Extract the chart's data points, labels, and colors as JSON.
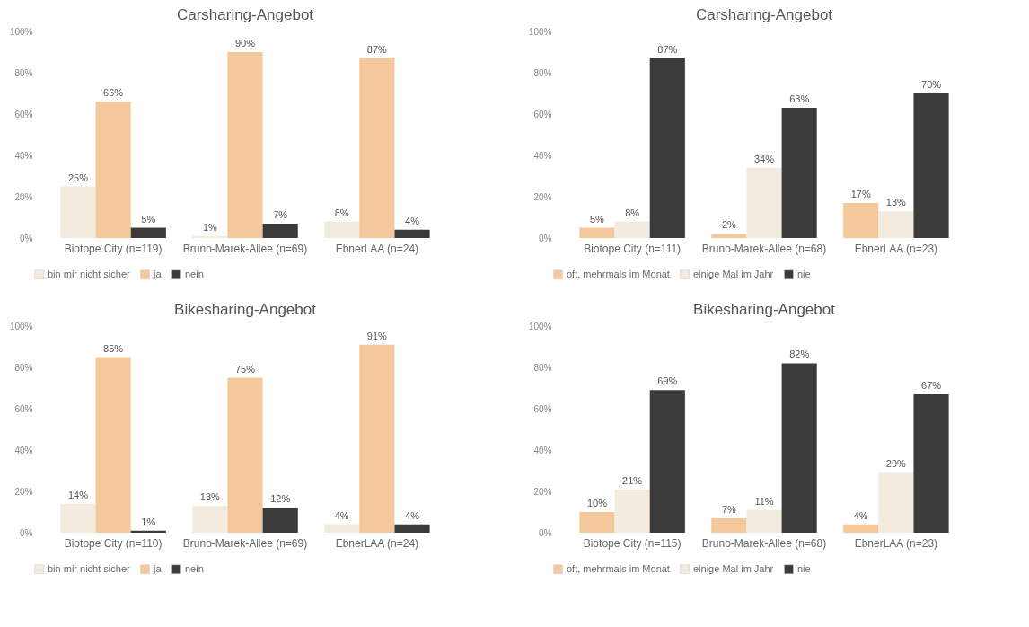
{
  "chart_data": [
    {
      "type": "bar",
      "title": "Carsharing-Angebot",
      "categories": [
        "Biotope City (n=119)",
        "Bruno-Marek-Allee (n=69)",
        "EbnerLAA (n=24)"
      ],
      "ylim": [
        0,
        100
      ],
      "yticks": [
        {
          "value": 0,
          "label": "0%"
        },
        {
          "value": 20,
          "label": "20%"
        },
        {
          "value": 40,
          "label": "40%"
        },
        {
          "value": 60,
          "label": "60%"
        },
        {
          "value": 80,
          "label": "80%"
        },
        {
          "value": 100,
          "label": "100%"
        }
      ],
      "legend": "bottom",
      "series": [
        {
          "name": "bin mir nicht sicher",
          "color": "#f3ebdf",
          "values": [
            25,
            1,
            8
          ],
          "value_labels": [
            "25%",
            "1%",
            "8%"
          ]
        },
        {
          "name": "ja",
          "color": "#f5c89c",
          "values": [
            66,
            90,
            87
          ],
          "value_labels": [
            "66%",
            "90%",
            "87%"
          ]
        },
        {
          "name": "nein",
          "color": "#3b3b3b",
          "values": [
            5,
            7,
            4
          ],
          "value_labels": [
            "5%",
            "7%",
            "4%"
          ]
        }
      ]
    },
    {
      "type": "bar",
      "title": "Carsharing-Angebot",
      "categories": [
        "Biotope City (n=111)",
        "Bruno-Marek-Allee (n=68)",
        "EbnerLAA (n=23)"
      ],
      "ylim": [
        0,
        100
      ],
      "yticks": [
        {
          "value": 0,
          "label": "0%"
        },
        {
          "value": 20,
          "label": "20%"
        },
        {
          "value": 40,
          "label": "40%"
        },
        {
          "value": 60,
          "label": "60%"
        },
        {
          "value": 80,
          "label": "80%"
        },
        {
          "value": 100,
          "label": "100%"
        }
      ],
      "legend": "bottom",
      "series": [
        {
          "name": "oft, mehrmals im Monat",
          "color": "#f5c89c",
          "values": [
            5,
            2,
            17
          ],
          "value_labels": [
            "5%",
            "2%",
            "17%"
          ]
        },
        {
          "name": "einige Mal im Jahr",
          "color": "#f3ebdf",
          "values": [
            8,
            34,
            13
          ],
          "value_labels": [
            "8%",
            "34%",
            "13%"
          ]
        },
        {
          "name": "nie",
          "color": "#3b3b3b",
          "values": [
            87,
            63,
            70
          ],
          "value_labels": [
            "87%",
            "63%",
            "70%"
          ]
        }
      ]
    },
    {
      "type": "bar",
      "title": "Bikesharing-Angebot",
      "categories": [
        "Biotope City (n=110)",
        "Bruno-Marek-Allee (n=69)",
        "EbnerLAA (n=24)"
      ],
      "ylim": [
        0,
        100
      ],
      "yticks": [
        {
          "value": 0,
          "label": "0%"
        },
        {
          "value": 20,
          "label": "20%"
        },
        {
          "value": 40,
          "label": "40%"
        },
        {
          "value": 60,
          "label": "60%"
        },
        {
          "value": 80,
          "label": "80%"
        },
        {
          "value": 100,
          "label": "100%"
        }
      ],
      "legend": "bottom",
      "series": [
        {
          "name": "bin mir nicht sicher",
          "color": "#f3ebdf",
          "values": [
            14,
            13,
            4
          ],
          "value_labels": [
            "14%",
            "13%",
            "4%"
          ]
        },
        {
          "name": "ja",
          "color": "#f5c89c",
          "values": [
            85,
            75,
            91
          ],
          "value_labels": [
            "85%",
            "75%",
            "91%"
          ]
        },
        {
          "name": "nein",
          "color": "#3b3b3b",
          "values": [
            1,
            12,
            4
          ],
          "value_labels": [
            "1%",
            "12%",
            "4%"
          ]
        }
      ]
    },
    {
      "type": "bar",
      "title": "Bikesharing-Angebot",
      "categories": [
        "Biotope City (n=115)",
        "Bruno-Marek-Allee (n=68)",
        "EbnerLAA (n=23)"
      ],
      "ylim": [
        0,
        100
      ],
      "yticks": [
        {
          "value": 0,
          "label": "0%"
        },
        {
          "value": 20,
          "label": "20%"
        },
        {
          "value": 40,
          "label": "40%"
        },
        {
          "value": 60,
          "label": "60%"
        },
        {
          "value": 80,
          "label": "80%"
        },
        {
          "value": 100,
          "label": "100%"
        }
      ],
      "legend": "bottom",
      "series": [
        {
          "name": "oft, mehrmals im Monat",
          "color": "#f5c89c",
          "values": [
            10,
            7,
            4
          ],
          "value_labels": [
            "10%",
            "7%",
            "4%"
          ]
        },
        {
          "name": "einige Mal im Jahr",
          "color": "#f3ebdf",
          "values": [
            21,
            11,
            29
          ],
          "value_labels": [
            "21%",
            "11%",
            "29%"
          ]
        },
        {
          "name": "nie",
          "color": "#3b3b3b",
          "values": [
            69,
            82,
            67
          ],
          "value_labels": [
            "69%",
            "82%",
            "67%"
          ]
        }
      ]
    }
  ]
}
